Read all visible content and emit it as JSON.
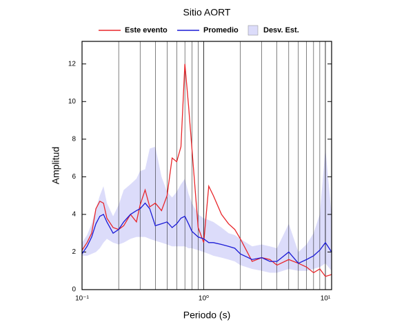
{
  "chart_data": {
    "type": "line",
    "title": "Sitio AORT",
    "xlabel": "Periodo (s)",
    "ylabel": "Amplitud",
    "xscale": "log",
    "grid": true,
    "legend": "top",
    "xlim": [
      0.1,
      11.25
    ],
    "ylim": [
      0,
      13.2
    ],
    "xticks": [
      {
        "value": 0.1,
        "label": "10⁻¹"
      },
      {
        "value": 1,
        "label": "10⁰"
      },
      {
        "value": 10,
        "label": "10¹"
      }
    ],
    "x_minor_grid": [
      0.2,
      0.3,
      0.4,
      0.5,
      0.6,
      0.7,
      0.8,
      0.9,
      2,
      3,
      4,
      5,
      6,
      7,
      8,
      9
    ],
    "yticks": [
      0,
      2,
      4,
      6,
      8,
      10,
      12
    ],
    "x": [
      0.1,
      0.11,
      0.12,
      0.13,
      0.14,
      0.15,
      0.16,
      0.18,
      0.2,
      0.22,
      0.25,
      0.28,
      0.3,
      0.33,
      0.36,
      0.4,
      0.45,
      0.5,
      0.55,
      0.6,
      0.65,
      0.7,
      0.75,
      0.8,
      0.9,
      1.0,
      1.1,
      1.2,
      1.4,
      1.6,
      1.8,
      2.0,
      2.5,
      3.0,
      3.5,
      4.0,
      5.0,
      6.0,
      7.0,
      8.0,
      9.0,
      10,
      11.25
    ],
    "series": [
      {
        "name": "Este evento",
        "color": "#e8262a",
        "values": [
          2.1,
          2.5,
          3.0,
          4.3,
          4.7,
          4.6,
          3.8,
          3.3,
          3.2,
          3.4,
          4.0,
          3.6,
          4.5,
          5.3,
          4.4,
          4.6,
          4.2,
          5.0,
          7.0,
          6.8,
          7.6,
          12.0,
          9.8,
          7.5,
          3.3,
          2.5,
          5.5,
          5.0,
          4.0,
          3.5,
          3.2,
          2.7,
          1.5,
          1.7,
          1.6,
          1.3,
          1.6,
          1.4,
          1.2,
          0.9,
          1.1,
          0.7,
          0.8
        ]
      },
      {
        "name": "Promedio",
        "color": "#1a1ad6",
        "values": [
          1.9,
          2.3,
          2.8,
          3.5,
          3.9,
          4.0,
          3.6,
          3.0,
          3.2,
          3.6,
          4.0,
          4.2,
          4.3,
          4.6,
          4.3,
          3.4,
          3.5,
          3.6,
          3.3,
          3.5,
          3.8,
          3.9,
          3.5,
          3.1,
          2.8,
          2.7,
          2.5,
          2.5,
          2.4,
          2.3,
          2.2,
          1.9,
          1.6,
          1.7,
          1.5,
          1.5,
          2.0,
          1.4,
          1.6,
          1.8,
          2.1,
          2.5,
          2.0
        ]
      },
      {
        "name": "Desv. Est.",
        "color": "#dcdcfa",
        "kind": "band",
        "lower": [
          1.8,
          1.8,
          1.9,
          2.0,
          2.2,
          2.5,
          2.7,
          2.5,
          2.4,
          2.5,
          2.7,
          2.8,
          2.8,
          2.8,
          2.7,
          2.6,
          2.5,
          2.4,
          2.3,
          2.3,
          2.3,
          2.3,
          2.2,
          2.2,
          2.1,
          2.0,
          1.9,
          1.8,
          1.7,
          1.6,
          1.5,
          1.3,
          1.1,
          1.0,
          0.9,
          0.9,
          1.1,
          1.0,
          1.0,
          1.1,
          1.2,
          1.4,
          1.0
        ],
        "upper": [
          2.5,
          2.9,
          3.5,
          4.3,
          5.0,
          5.5,
          4.6,
          3.9,
          4.5,
          5.3,
          5.6,
          5.9,
          6.3,
          6.4,
          7.5,
          7.6,
          6.0,
          5.2,
          4.9,
          5.2,
          5.6,
          5.9,
          5.1,
          4.6,
          4.0,
          3.8,
          3.7,
          3.6,
          3.3,
          3.0,
          2.9,
          2.7,
          2.3,
          2.4,
          2.3,
          2.2,
          3.5,
          2.0,
          2.4,
          3.0,
          4.0,
          7.5,
          4.0
        ]
      }
    ]
  }
}
